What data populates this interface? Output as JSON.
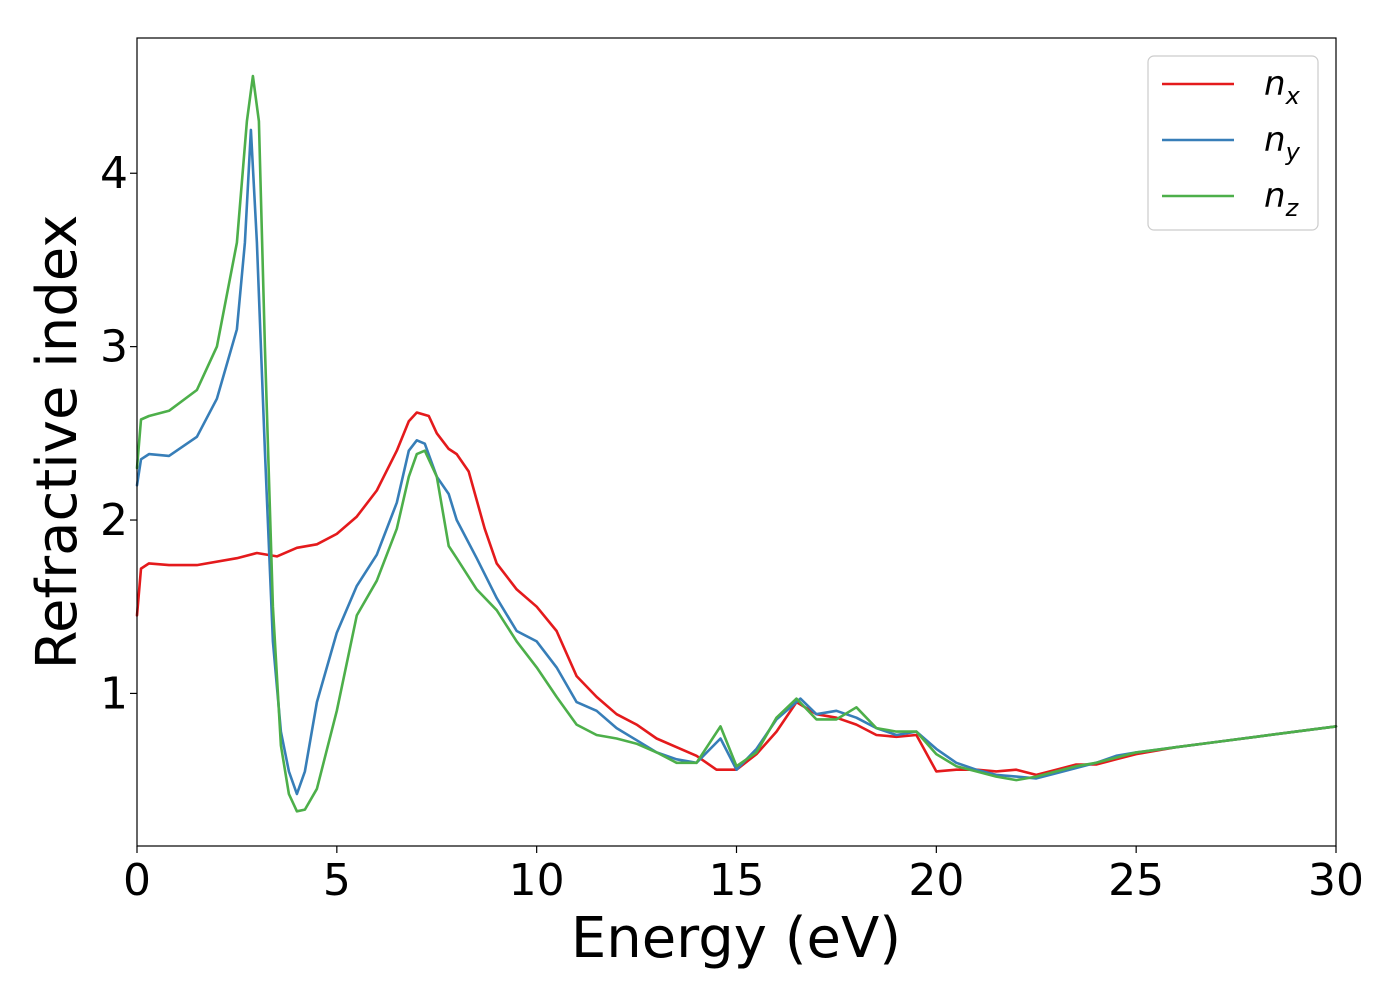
{
  "chart_data": {
    "type": "line",
    "xlabel": "Energy (eV)",
    "ylabel": "Refractive index",
    "xlim": [
      0,
      30
    ],
    "ylim": [
      0.12,
      4.78
    ],
    "xticks": [
      0,
      5,
      10,
      15,
      20,
      25,
      30
    ],
    "xtick_labels": [
      "0",
      "5",
      "10",
      "15",
      "20",
      "25",
      "30"
    ],
    "yticks": [
      1,
      2,
      3,
      4
    ],
    "ytick_labels": [
      "1",
      "2",
      "3",
      "4"
    ],
    "grid": false,
    "legend_position": "top-right",
    "series": [
      {
        "name": "n",
        "subscript": "x",
        "color": "#e41a1c",
        "x": [
          0,
          0.1,
          0.3,
          0.8,
          1.5,
          2.5,
          3.0,
          3.5,
          4.0,
          4.5,
          5.0,
          5.5,
          6.0,
          6.5,
          6.8,
          7.0,
          7.3,
          7.5,
          7.8,
          8.0,
          8.3,
          8.7,
          9.0,
          9.5,
          10.0,
          10.5,
          11.0,
          11.5,
          12.0,
          12.5,
          13.0,
          13.5,
          14.0,
          14.5,
          15.0,
          15.5,
          16.0,
          16.5,
          17.0,
          17.5,
          18.0,
          18.5,
          19.0,
          19.5,
          20.0,
          20.5,
          21.0,
          21.5,
          22.0,
          22.5,
          23.0,
          23.5,
          24.0,
          24.5,
          25.0,
          26.0,
          27.0,
          28.0,
          29.0,
          30.0
        ],
        "y": [
          1.45,
          1.72,
          1.75,
          1.74,
          1.74,
          1.78,
          1.81,
          1.79,
          1.84,
          1.86,
          1.92,
          2.02,
          2.17,
          2.4,
          2.57,
          2.62,
          2.6,
          2.5,
          2.41,
          2.38,
          2.28,
          1.95,
          1.75,
          1.6,
          1.5,
          1.36,
          1.1,
          0.98,
          0.88,
          0.82,
          0.74,
          0.69,
          0.64,
          0.56,
          0.56,
          0.65,
          0.78,
          0.95,
          0.88,
          0.86,
          0.82,
          0.76,
          0.75,
          0.76,
          0.55,
          0.56,
          0.56,
          0.55,
          0.56,
          0.53,
          0.56,
          0.59,
          0.59,
          0.62,
          0.65,
          0.69,
          0.72,
          0.75,
          0.78,
          0.81
        ]
      },
      {
        "name": "n",
        "subscript": "y",
        "color": "#377eb8",
        "x": [
          0,
          0.1,
          0.3,
          0.8,
          1.5,
          2.0,
          2.5,
          2.7,
          2.85,
          3.0,
          3.2,
          3.4,
          3.6,
          3.8,
          4.0,
          4.2,
          4.5,
          5.0,
          5.5,
          6.0,
          6.5,
          6.8,
          7.0,
          7.2,
          7.5,
          7.8,
          8.0,
          8.5,
          9.0,
          9.5,
          10.0,
          10.5,
          11.0,
          11.5,
          12.0,
          12.5,
          13.0,
          13.5,
          14.0,
          14.6,
          15.0,
          15.5,
          16.0,
          16.6,
          17.0,
          17.5,
          18.0,
          18.5,
          19.0,
          19.5,
          20.0,
          20.5,
          21.0,
          21.5,
          22.0,
          22.5,
          23.0,
          23.5,
          24.0,
          24.5,
          25.0,
          26.0,
          27.0,
          28.0,
          29.0,
          30.0
        ],
        "y": [
          2.2,
          2.35,
          2.38,
          2.37,
          2.48,
          2.7,
          3.1,
          3.6,
          4.25,
          3.6,
          2.4,
          1.3,
          0.78,
          0.55,
          0.42,
          0.55,
          0.95,
          1.35,
          1.62,
          1.8,
          2.1,
          2.4,
          2.46,
          2.44,
          2.25,
          2.15,
          2.0,
          1.78,
          1.55,
          1.36,
          1.3,
          1.15,
          0.95,
          0.9,
          0.8,
          0.73,
          0.66,
          0.62,
          0.6,
          0.74,
          0.56,
          0.68,
          0.85,
          0.97,
          0.88,
          0.9,
          0.86,
          0.8,
          0.76,
          0.78,
          0.68,
          0.6,
          0.56,
          0.53,
          0.52,
          0.51,
          0.54,
          0.57,
          0.6,
          0.64,
          0.66,
          0.69,
          0.72,
          0.75,
          0.78,
          0.81
        ]
      },
      {
        "name": "n",
        "subscript": "z",
        "color": "#4daf4a",
        "x": [
          0,
          0.1,
          0.3,
          0.8,
          1.5,
          2.0,
          2.5,
          2.75,
          2.9,
          3.05,
          3.2,
          3.4,
          3.6,
          3.8,
          4.0,
          4.2,
          4.5,
          5.0,
          5.5,
          6.0,
          6.5,
          6.8,
          7.0,
          7.2,
          7.5,
          7.8,
          8.0,
          8.5,
          9.0,
          9.5,
          10.0,
          10.5,
          11.0,
          11.5,
          12.0,
          12.5,
          13.0,
          13.5,
          14.0,
          14.6,
          15.0,
          15.5,
          16.0,
          16.5,
          17.0,
          17.5,
          18.0,
          18.5,
          19.0,
          19.5,
          20.0,
          20.5,
          21.0,
          21.5,
          22.0,
          22.5,
          23.0,
          23.5,
          24.0,
          24.5,
          25.0,
          26.0,
          27.0,
          28.0,
          29.0,
          30.0
        ],
        "y": [
          2.3,
          2.58,
          2.6,
          2.63,
          2.75,
          3.0,
          3.6,
          4.3,
          4.56,
          4.3,
          3.0,
          1.5,
          0.7,
          0.42,
          0.32,
          0.33,
          0.45,
          0.9,
          1.45,
          1.65,
          1.95,
          2.25,
          2.38,
          2.4,
          2.25,
          1.85,
          1.78,
          1.6,
          1.48,
          1.3,
          1.15,
          0.98,
          0.82,
          0.76,
          0.74,
          0.71,
          0.66,
          0.6,
          0.6,
          0.81,
          0.58,
          0.66,
          0.86,
          0.97,
          0.85,
          0.85,
          0.92,
          0.8,
          0.78,
          0.78,
          0.65,
          0.58,
          0.55,
          0.52,
          0.5,
          0.52,
          0.55,
          0.58,
          0.6,
          0.63,
          0.66,
          0.69,
          0.72,
          0.75,
          0.78,
          0.81
        ]
      }
    ]
  }
}
